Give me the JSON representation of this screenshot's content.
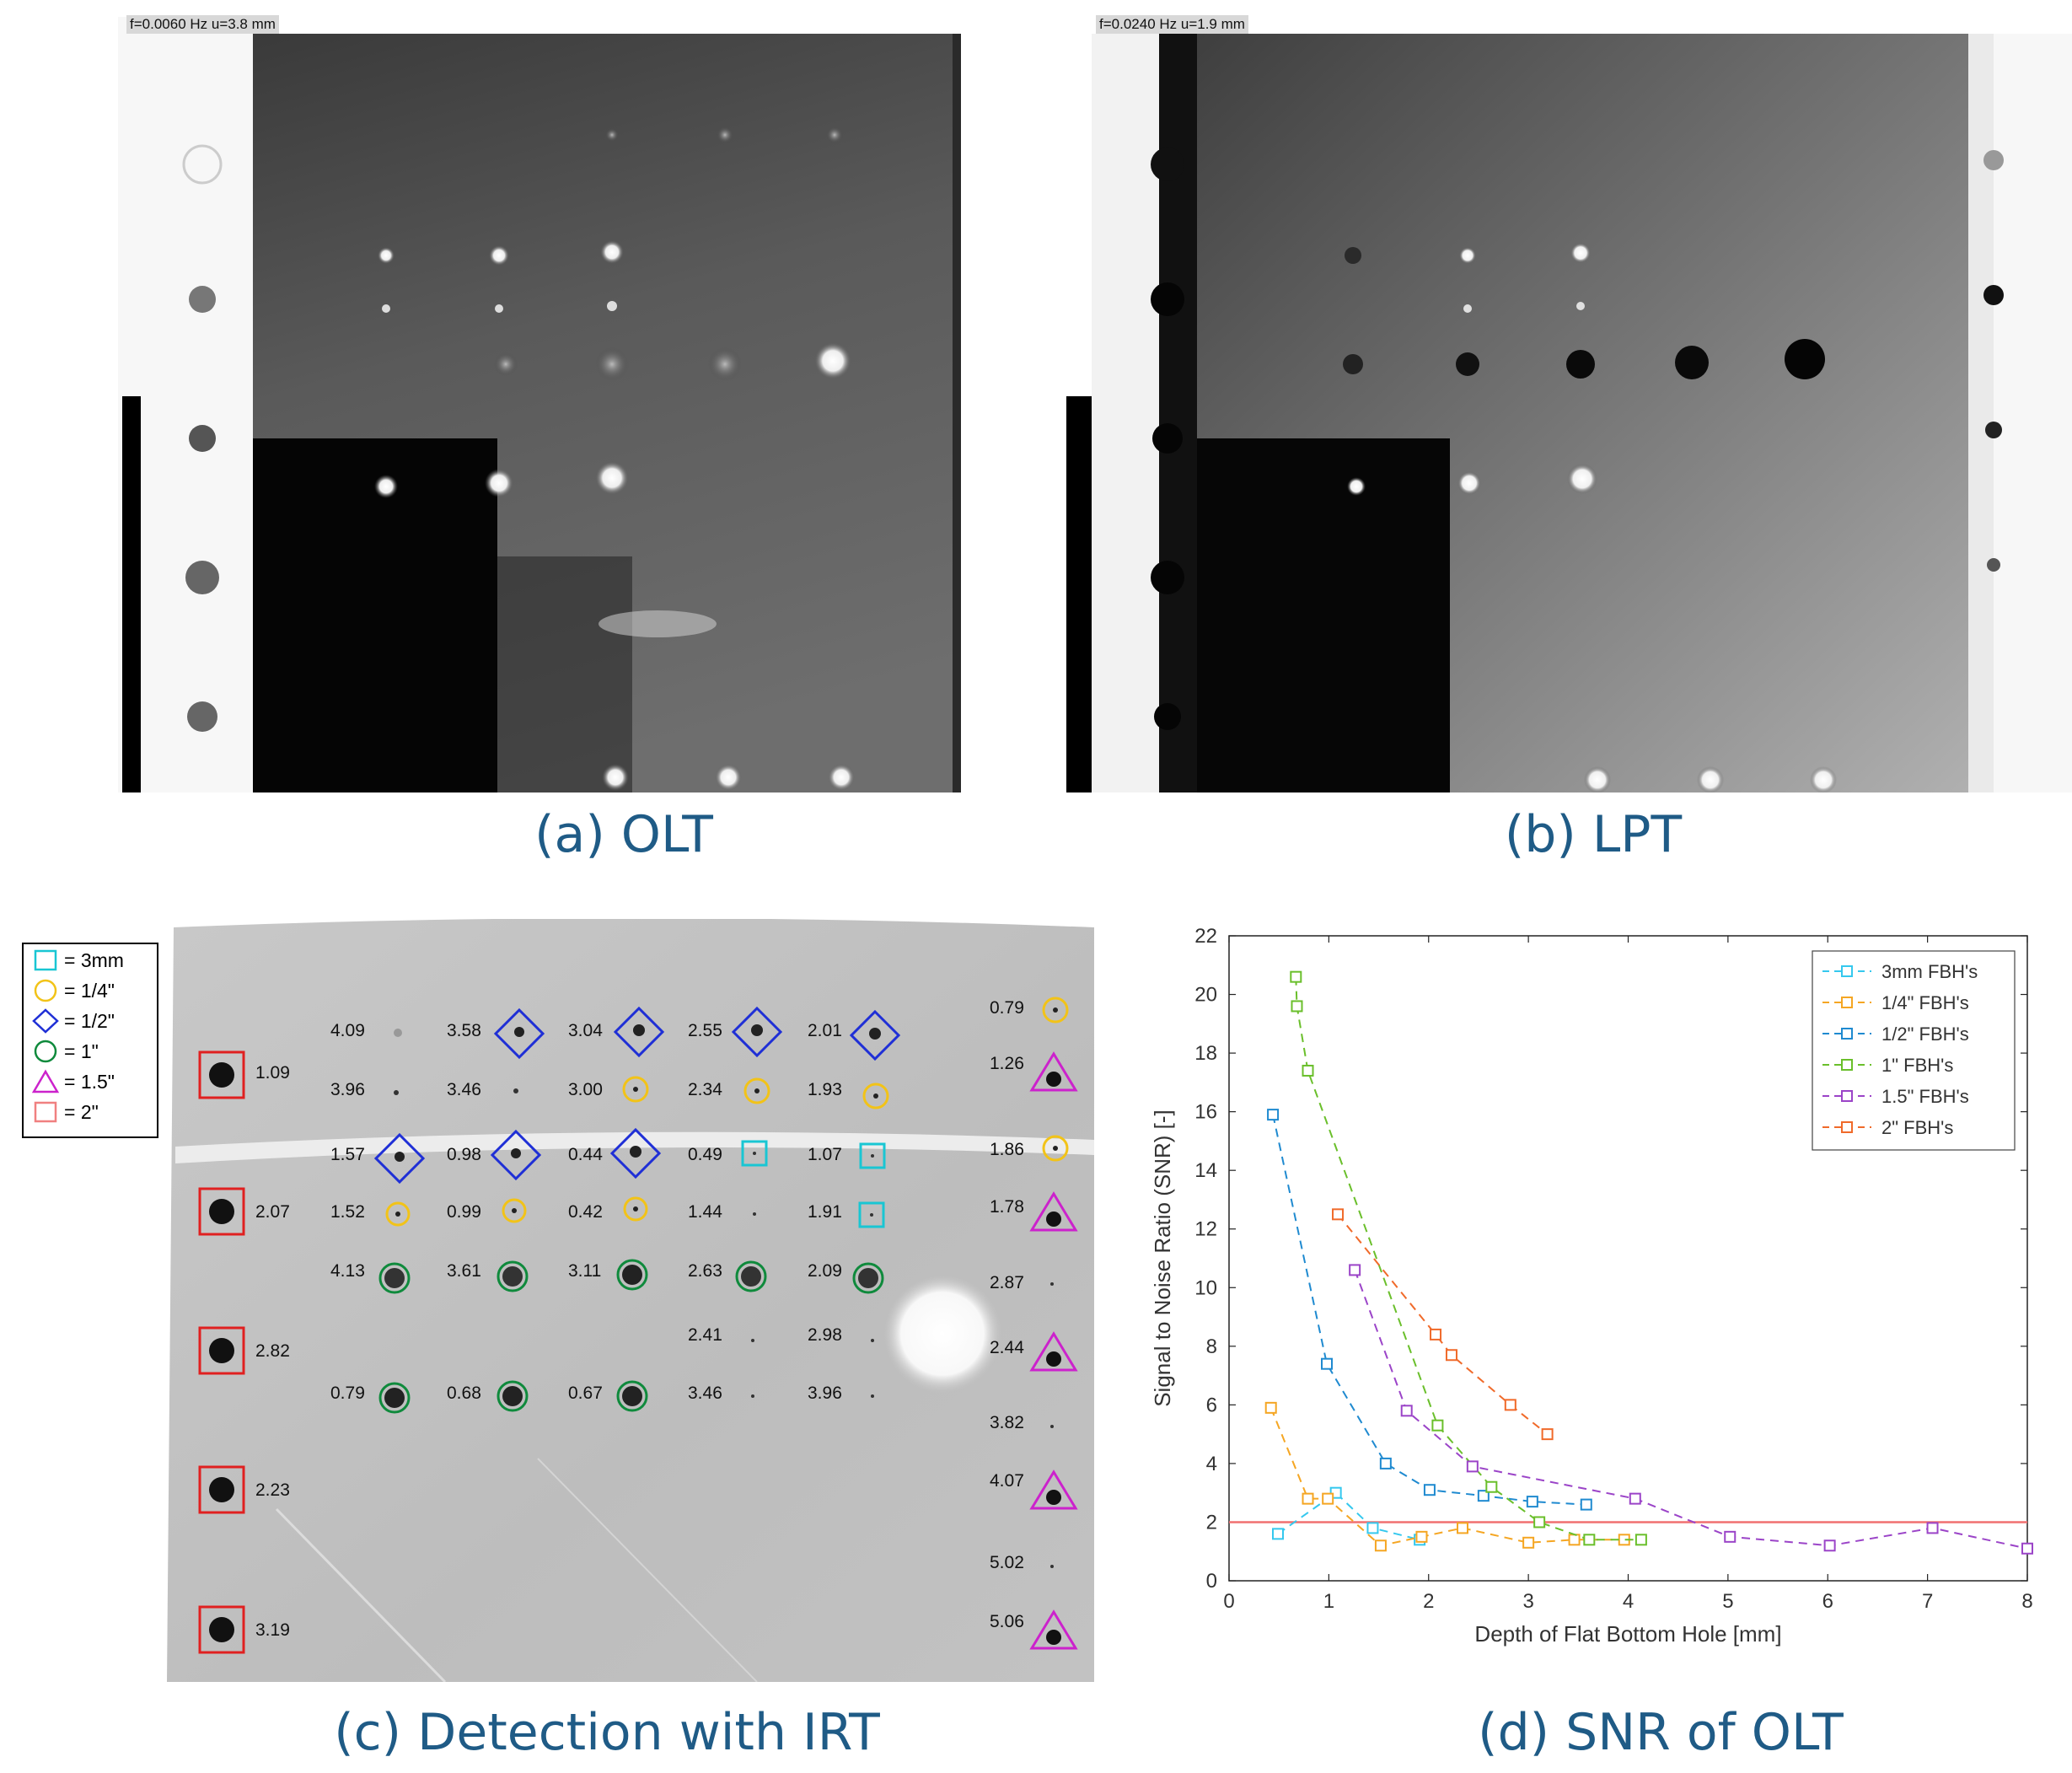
{
  "captions": {
    "a": "(a) OLT",
    "b": "(b) LPT",
    "c": "(c) Detection with IRT",
    "d": "(d) SNR of OLT"
  },
  "panel_a": {
    "overlay": "f=0.0060 Hz u=3.8 mm"
  },
  "panel_b": {
    "overlay": "f=0.0240 Hz u=1.9 mm"
  },
  "panel_c": {
    "legend": [
      {
        "shape": "square",
        "color": "#19c6d3",
        "label": "= 3mm"
      },
      {
        "shape": "circle",
        "color": "#f2c318",
        "label": "= 1/4\""
      },
      {
        "shape": "diamond",
        "color": "#1f2fd6",
        "label": "= 1/2\""
      },
      {
        "shape": "circle",
        "color": "#0f8a3c",
        "label": "= 1\""
      },
      {
        "shape": "triangle",
        "color": "#cc22cc",
        "label": "= 1.5\""
      },
      {
        "shape": "square",
        "color": "#f08080",
        "label": "= 2\""
      }
    ],
    "values": {
      "left_col": [
        "1.09",
        "2.07",
        "2.82",
        "2.23",
        "3.19"
      ],
      "row1": [
        "4.09",
        "3.58",
        "3.04",
        "2.55",
        "2.01"
      ],
      "row2": [
        "3.96",
        "3.46",
        "3.00",
        "2.34",
        "1.93"
      ],
      "row3": [
        "1.57",
        "0.98",
        "0.44",
        "0.49",
        "1.07"
      ],
      "row4": [
        "1.52",
        "0.99",
        "0.42",
        "1.44",
        "1.91"
      ],
      "row5": [
        "4.13",
        "3.61",
        "3.11",
        "2.63",
        "2.09"
      ],
      "row6": [
        "2.41",
        "2.98"
      ],
      "row7": [
        "0.79",
        "0.68",
        "0.67",
        "3.46",
        "3.96"
      ],
      "right_col": [
        "0.79",
        "1.26",
        "1.86",
        "1.78",
        "2.87",
        "2.44",
        "3.82",
        "4.07",
        "5.02",
        "5.06"
      ]
    }
  },
  "chart_data": {
    "type": "line",
    "title": "",
    "xlabel": "Depth of Flat Bottom Hole [mm]",
    "ylabel": "Signal to Noise Ratio (SNR) [-]",
    "xlim": [
      0,
      8
    ],
    "ylim": [
      0,
      22
    ],
    "xticks": [
      "0",
      "1",
      "2",
      "3",
      "4",
      "5",
      "6",
      "7",
      "8"
    ],
    "yticks": [
      "0",
      "2",
      "4",
      "6",
      "8",
      "10",
      "12",
      "14",
      "16",
      "18",
      "20",
      "22"
    ],
    "grid": false,
    "legend_position": "top-right",
    "threshold": {
      "y": 2,
      "color": "#f07070"
    },
    "series": [
      {
        "name": "3mm FBH's",
        "color": "#35c8ee",
        "x": [
          0.49,
          1.07,
          1.44,
          1.91
        ],
        "y": [
          1.6,
          3.0,
          1.8,
          1.4
        ]
      },
      {
        "name": "1/4\" FBH's",
        "color": "#f5a623",
        "x": [
          0.42,
          0.79,
          0.99,
          1.52,
          1.93,
          2.34,
          3.0,
          3.46,
          3.96
        ],
        "y": [
          5.9,
          2.8,
          2.8,
          1.2,
          1.5,
          1.8,
          1.3,
          1.4,
          1.4
        ]
      },
      {
        "name": "1/2\" FBH's",
        "color": "#1f8ad0",
        "x": [
          0.44,
          0.98,
          1.57,
          2.01,
          2.55,
          3.04,
          3.58
        ],
        "y": [
          15.9,
          7.4,
          4.0,
          3.1,
          2.9,
          2.7,
          2.6
        ]
      },
      {
        "name": "1\" FBH's",
        "color": "#6abf2b",
        "x": [
          0.67,
          0.68,
          0.79,
          2.09,
          2.63,
          3.11,
          3.61,
          4.13
        ],
        "y": [
          20.6,
          19.6,
          17.4,
          5.3,
          3.2,
          2.0,
          1.4,
          1.4
        ]
      },
      {
        "name": "1.5\" FBH's",
        "color": "#9b44c8",
        "x": [
          1.26,
          1.78,
          2.44,
          4.07,
          5.02,
          6.02,
          7.05,
          8.0
        ],
        "y": [
          10.6,
          5.8,
          3.9,
          2.8,
          1.5,
          1.2,
          1.8,
          1.1
        ]
      },
      {
        "name": "2\" FBH's",
        "color": "#f06a2a",
        "x": [
          1.09,
          2.07,
          2.23,
          2.82,
          3.19
        ],
        "y": [
          12.5,
          8.4,
          7.7,
          6.0,
          5.0
        ]
      }
    ]
  }
}
